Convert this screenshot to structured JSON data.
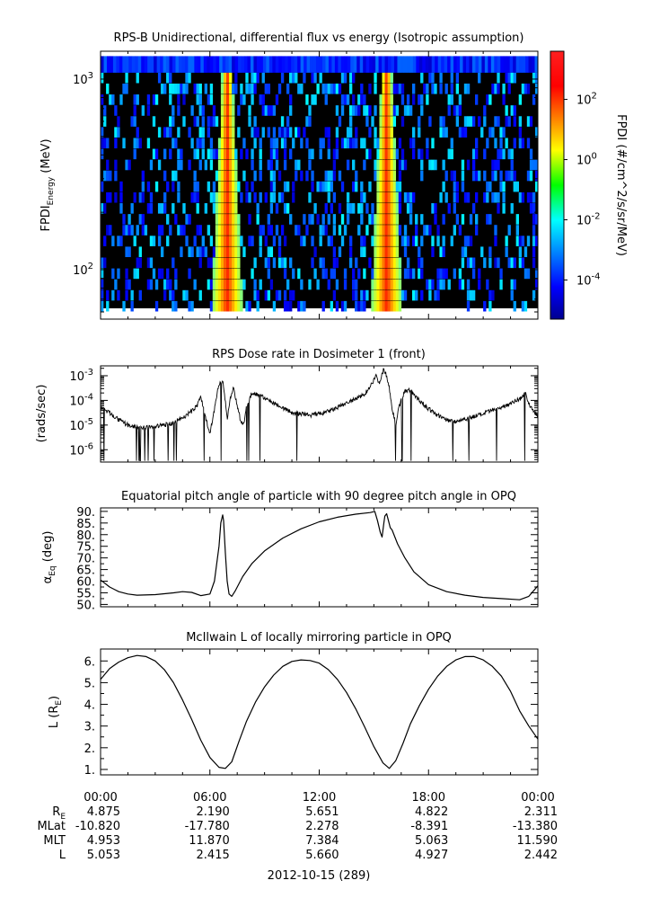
{
  "chart_data": [
    {
      "type": "heatmap",
      "title": "RPS-B  Unidirectional, differential flux vs energy (Isotropic assumption)",
      "ylabel_main": "FPDI",
      "ylabel_sub": "Energy",
      "ylabel_unit": " (MeV)",
      "yscale": "log",
      "ylim": [
        55,
        1400
      ],
      "yticks": [
        {
          "value": 100,
          "base": "10",
          "exp": "2"
        },
        {
          "value": 1000,
          "base": "10",
          "exp": "3"
        }
      ],
      "xlim_hours": [
        0,
        24
      ],
      "bursts": [
        {
          "center_hour": 6.95,
          "note": "V-shaped intense band"
        },
        {
          "center_hour": 15.7,
          "note": "V-shaped intense band"
        }
      ],
      "colorbar": {
        "label": "FPDI (#/cm^2/s/sr/MeV)",
        "scale": "log",
        "range_exponent": [
          -5.3,
          3.6
        ],
        "ticks": [
          {
            "value_exponent": 2,
            "base": "10",
            "exp": "2"
          },
          {
            "value_exponent": 0,
            "base": "10",
            "exp": "0"
          },
          {
            "value_exponent": -2,
            "base": "10",
            "exp": "-2"
          },
          {
            "value_exponent": -4,
            "base": "10",
            "exp": "-4"
          }
        ]
      }
    },
    {
      "type": "line",
      "title": "RPS  Dose rate in Dosimeter 1 (front)",
      "ylabel": "(rads/sec)",
      "yscale": "log",
      "ylim_exponent": [
        -6.5,
        -2.6
      ],
      "yticks": [
        {
          "value_exponent": -3,
          "base": "10",
          "exp": "-3"
        },
        {
          "value_exponent": -4,
          "base": "10",
          "exp": "-4"
        },
        {
          "value_exponent": -5,
          "base": "10",
          "exp": "-5"
        },
        {
          "value_exponent": -6,
          "base": "10",
          "exp": "-6"
        }
      ],
      "xlim_hours": [
        0,
        24
      ],
      "series": {
        "name": "Dosimeter 1",
        "x_hours": [
          0.0,
          0.5,
          1.0,
          1.5,
          2.0,
          2.5,
          3.0,
          3.5,
          4.0,
          4.5,
          5.0,
          5.3,
          5.5,
          5.8,
          6.0,
          6.2,
          6.35,
          6.5,
          6.7,
          6.85,
          6.95,
          7.1,
          7.3,
          7.5,
          7.7,
          7.85,
          8.0,
          8.3,
          8.6,
          9.0,
          9.5,
          10.0,
          10.5,
          11.0,
          11.5,
          12.0,
          12.5,
          13.0,
          13.5,
          14.0,
          14.5,
          14.9,
          15.1,
          15.3,
          15.45,
          15.55,
          15.7,
          15.85,
          16.0,
          16.2,
          16.4,
          16.7,
          17.0,
          17.5,
          18.0,
          18.5,
          19.0,
          19.5,
          20.0,
          20.5,
          21.0,
          21.5,
          22.0,
          22.5,
          23.0,
          23.3,
          23.6,
          24.0
        ],
        "y_exponent": [
          -4.3,
          -4.5,
          -4.8,
          -5.0,
          -5.1,
          -5.1,
          -5.05,
          -5.0,
          -4.9,
          -4.7,
          -4.45,
          -4.2,
          -3.85,
          -4.8,
          -5.3,
          -4.6,
          -3.9,
          -3.35,
          -3.2,
          -4.0,
          -4.8,
          -4.0,
          -3.5,
          -4.2,
          -4.9,
          -5.0,
          -4.3,
          -3.7,
          -3.75,
          -3.9,
          -4.1,
          -4.3,
          -4.5,
          -4.55,
          -4.6,
          -4.55,
          -4.45,
          -4.3,
          -4.1,
          -3.95,
          -3.75,
          -3.3,
          -3.0,
          -3.3,
          -2.9,
          -2.75,
          -3.0,
          -3.5,
          -4.3,
          -5.0,
          -4.2,
          -3.6,
          -3.6,
          -4.0,
          -4.35,
          -4.6,
          -4.8,
          -4.85,
          -4.75,
          -4.65,
          -4.55,
          -4.4,
          -4.3,
          -4.1,
          -3.95,
          -3.7,
          -4.3,
          -4.6
        ]
      }
    },
    {
      "type": "line",
      "title": "Equatorial pitch angle of particle with 90 degree pitch angle in OPQ",
      "ylabel_main": "α",
      "ylabel_sub": "Eq",
      "ylabel_unit": " (deg)",
      "ylim": [
        49,
        91.5
      ],
      "yticks": [
        "50.",
        "55.",
        "60.",
        "65.",
        "70.",
        "75.",
        "80.",
        "85.",
        "90."
      ],
      "xlim_hours": [
        0,
        24
      ],
      "series": {
        "name": "pitch angle",
        "x_hours": [
          0.0,
          0.5,
          1.0,
          1.5,
          2.0,
          3.0,
          4.0,
          4.5,
          5.0,
          5.5,
          6.0,
          6.25,
          6.5,
          6.6,
          6.7,
          6.75,
          6.85,
          6.95,
          7.05,
          7.2,
          7.4,
          7.8,
          8.3,
          9.0,
          10.0,
          11.0,
          12.0,
          13.0,
          14.0,
          14.8,
          15.05,
          15.2,
          15.35,
          15.45,
          15.55,
          15.6,
          15.7,
          15.8,
          15.9,
          16.0,
          16.3,
          16.7,
          17.2,
          18.0,
          19.0,
          20.0,
          21.0,
          22.0,
          23.0,
          23.5,
          24.0
        ],
        "y": [
          60.5,
          57.5,
          55.5,
          54.5,
          54.0,
          54.2,
          55.0,
          55.5,
          55.2,
          53.8,
          54.5,
          60.0,
          75.0,
          85.0,
          88.5,
          86.0,
          72.0,
          60.0,
          54.5,
          53.5,
          56.0,
          62.0,
          67.5,
          73.0,
          78.5,
          82.5,
          85.5,
          87.5,
          88.8,
          89.5,
          90.0,
          86.0,
          81.0,
          79.0,
          85.0,
          88.0,
          89.0,
          86.0,
          83.0,
          82.0,
          76.0,
          70.0,
          64.0,
          58.5,
          55.5,
          54.0,
          53.0,
          52.5,
          52.0,
          53.5,
          58.0
        ]
      }
    },
    {
      "type": "line",
      "title": "McIlwain L of locally mirroring particle in OPQ",
      "ylabel_main": "L (R",
      "ylabel_sub": "E",
      "ylabel_unit": ")",
      "ylim": [
        0.75,
        6.55
      ],
      "yticks": [
        "1.",
        "2.",
        "3.",
        "4.",
        "5.",
        "6."
      ],
      "xlim_hours": [
        0,
        24
      ],
      "series": {
        "name": "McIlwain L",
        "x_hours": [
          0.0,
          0.5,
          1.0,
          1.5,
          2.0,
          2.5,
          3.0,
          3.5,
          4.0,
          4.5,
          5.0,
          5.5,
          6.0,
          6.5,
          6.85,
          7.2,
          7.6,
          8.0,
          8.5,
          9.0,
          9.5,
          10.0,
          10.5,
          11.0,
          11.5,
          12.0,
          12.5,
          13.0,
          13.5,
          14.0,
          14.5,
          15.0,
          15.5,
          15.85,
          16.2,
          16.6,
          17.0,
          17.5,
          18.0,
          18.5,
          19.0,
          19.5,
          20.0,
          20.5,
          21.0,
          21.5,
          22.0,
          22.5,
          23.0,
          23.5,
          24.0
        ],
        "y": [
          5.15,
          5.65,
          5.95,
          6.15,
          6.25,
          6.2,
          6.0,
          5.6,
          5.0,
          4.2,
          3.3,
          2.35,
          1.55,
          1.1,
          1.05,
          1.35,
          2.3,
          3.2,
          4.1,
          4.8,
          5.35,
          5.75,
          5.98,
          6.05,
          6.02,
          5.9,
          5.6,
          5.15,
          4.55,
          3.8,
          2.95,
          2.05,
          1.3,
          1.05,
          1.4,
          2.2,
          3.1,
          3.95,
          4.7,
          5.3,
          5.75,
          6.05,
          6.2,
          6.2,
          6.05,
          5.75,
          5.3,
          4.6,
          3.7,
          3.0,
          2.4
        ]
      }
    }
  ],
  "x_axis": {
    "tick_labels": [
      "00:00",
      "06:00",
      "12:00",
      "18:00",
      "00:00"
    ],
    "row_labels": [
      {
        "main": "R",
        "sub": "E"
      },
      {
        "main": "MLat",
        "sub": ""
      },
      {
        "main": "MLT",
        "sub": ""
      },
      {
        "main": "L",
        "sub": ""
      }
    ],
    "rows": [
      [
        "4.875",
        "2.190",
        "5.651",
        "4.822",
        "2.311"
      ],
      [
        "-10.820",
        "-17.780",
        "2.278",
        "-8.391",
        "-13.380"
      ],
      [
        "4.953",
        "11.870",
        "7.384",
        "5.063",
        "11.590"
      ],
      [
        "5.053",
        "2.415",
        "5.660",
        "4.927",
        "2.442"
      ]
    ],
    "date_label": "2012-10-15 (289)"
  }
}
